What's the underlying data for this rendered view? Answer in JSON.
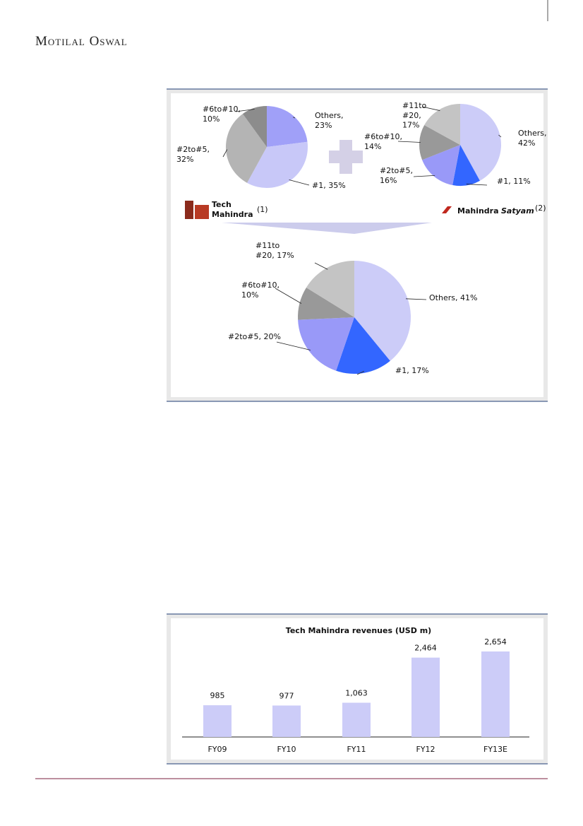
{
  "header": {
    "brand": "Motilal Oswal"
  },
  "logos": [
    {
      "text": "Tech\nMahindra",
      "note": "(1)"
    },
    {
      "text": "Mahindra",
      "accent": "Satyam",
      "note": "(2)"
    }
  ],
  "chart_data": [
    {
      "type": "pie",
      "values": [
        23,
        35,
        32,
        10
      ],
      "value_labels": [
        "Others,\n23%",
        "#1, 35%",
        "#2to#5,\n32%",
        "#6to#10,\n10%"
      ],
      "colors": [
        "#a0a0f8",
        "#c8c8f8",
        "#b4b4b4",
        "#8c8c8c"
      ]
    },
    {
      "type": "pie",
      "values": [
        42,
        11,
        16,
        14,
        17
      ],
      "value_labels": [
        "Others,\n42%",
        "#1, 11%",
        "#2to#5,\n16%",
        "#6to#10,\n14%",
        "#11to\n#20,\n17%"
      ],
      "colors": [
        "#ccccf8",
        "#3366ff",
        "#9999f8",
        "#999999",
        "#c4c4c4"
      ]
    },
    {
      "type": "pie",
      "values": [
        41,
        17,
        20,
        10,
        17
      ],
      "value_labels": [
        "Others, 41%",
        "#1, 17%",
        "#2to#5, 20%",
        "#6to#10,\n10%",
        "#11to\n#20, 17%"
      ],
      "colors": [
        "#ccccf8",
        "#3366ff",
        "#9999f8",
        "#999999",
        "#c4c4c4"
      ]
    },
    {
      "type": "bar",
      "title": "Tech Mahindra revenues (USD m)",
      "categories": [
        "FY09",
        "FY10",
        "FY11",
        "FY12",
        "FY13E"
      ],
      "values": [
        985,
        977,
        1063,
        2464,
        2654
      ],
      "value_labels": [
        "985",
        "977",
        "1,063",
        "2,464",
        "2,654"
      ],
      "color": "#ccccf8"
    }
  ]
}
